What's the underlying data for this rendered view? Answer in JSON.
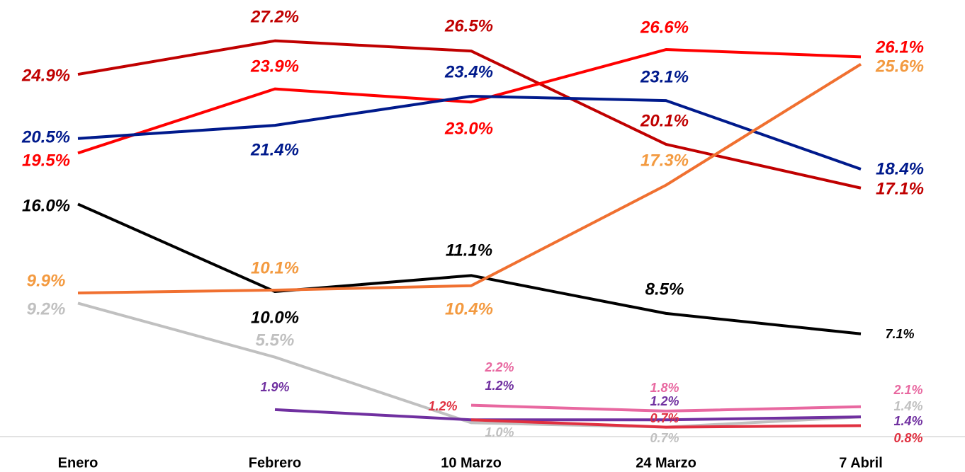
{
  "chart_data": {
    "type": "line",
    "categories": [
      "Enero",
      "Febrero",
      "10 Marzo",
      "24 Marzo",
      "7 Abril"
    ],
    "ylim": [
      0,
      30
    ],
    "series": [
      {
        "color": "#c00000",
        "values": [
          24.9,
          27.2,
          26.5,
          20.1,
          17.1
        ],
        "value_labels": [
          "24.9%",
          "27.2%",
          "26.5%",
          "20.1%",
          "17.1%"
        ]
      },
      {
        "color": "#ff0000",
        "values": [
          19.5,
          23.9,
          23.0,
          26.6,
          26.1
        ],
        "value_labels": [
          "19.5%",
          "23.9%",
          "23.0%",
          "26.6%",
          "26.1%"
        ]
      },
      {
        "color": "#001a8c",
        "values": [
          20.5,
          21.4,
          23.4,
          23.1,
          18.4
        ],
        "value_labels": [
          "20.5%",
          "21.4%",
          "23.4%",
          "23.1%",
          "18.4%"
        ]
      },
      {
        "color": "#000000",
        "values": [
          16.0,
          10.0,
          11.1,
          8.5,
          7.1
        ],
        "value_labels": [
          "16.0%",
          "10.0%",
          "11.1%",
          "8.5%",
          "7.1%"
        ]
      },
      {
        "color": "#f07030",
        "label_color": "#f39a40",
        "values": [
          9.9,
          10.1,
          10.4,
          17.3,
          25.6
        ],
        "value_labels": [
          "9.9%",
          "10.1%",
          "10.4%",
          "17.3%",
          "25.6%"
        ]
      },
      {
        "color": "#c0c0c0",
        "values": [
          9.2,
          5.5,
          1.0,
          0.7,
          1.4
        ],
        "value_labels": [
          "9.2%",
          "5.5%",
          "1.0%",
          "0.7%",
          "1.4%"
        ]
      },
      {
        "color": "#7030a0",
        "values": [
          null,
          1.9,
          1.2,
          1.2,
          1.4
        ],
        "value_labels": [
          null,
          "1.9%",
          "1.2%",
          "1.2%",
          "1.4%"
        ]
      },
      {
        "color": "#e868a0",
        "values": [
          null,
          null,
          2.2,
          1.8,
          2.1
        ],
        "value_labels": [
          null,
          null,
          "2.2%",
          "1.8%",
          "2.1%"
        ]
      },
      {
        "color": "#e03040",
        "values": [
          null,
          null,
          1.2,
          0.7,
          0.8
        ],
        "value_labels": [
          null,
          null,
          "1.2%",
          "0.7%",
          "0.8%"
        ]
      }
    ]
  }
}
